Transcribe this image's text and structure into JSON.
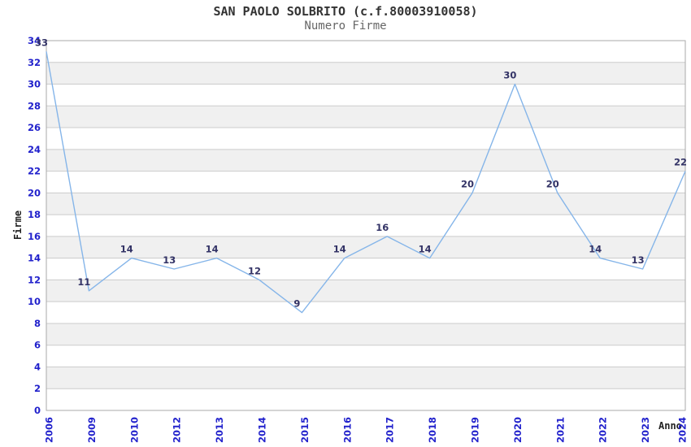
{
  "header": {
    "title": "SAN PAOLO SOLBRITO (c.f.80003910058)",
    "subtitle": "Numero Firme"
  },
  "axes": {
    "y_label": "Firme",
    "x_label": "Anno"
  },
  "chart_data": {
    "type": "line",
    "title": "SAN PAOLO SOLBRITO (c.f.80003910058)",
    "subtitle": "Numero Firme",
    "xlabel": "Anno",
    "ylabel": "Firme",
    "x": [
      "2006",
      "2009",
      "2010",
      "2012",
      "2013",
      "2014",
      "2015",
      "2016",
      "2017",
      "2018",
      "2019",
      "2020",
      "2021",
      "2022",
      "2023",
      "2024"
    ],
    "values": [
      33,
      11,
      14,
      13,
      14,
      12,
      9,
      14,
      16,
      14,
      20,
      30,
      20,
      14,
      13,
      22
    ],
    "data_labels_visible": true,
    "ylim": [
      0,
      34
    ],
    "ytick_step": 2,
    "grid": "horizontal",
    "banding": "alternating-2-unit-stripes",
    "legend_position": "none",
    "colors": {
      "background": "#ffffff",
      "band": "#f0f0f0",
      "gridline": "#cccccc",
      "frame": "#aaaaaa",
      "line": "#85b5e9",
      "tick_label": "#2222cc",
      "data_label": "#333366",
      "title": "#333333",
      "subtitle": "#666666",
      "axis_label": "#222222"
    }
  }
}
